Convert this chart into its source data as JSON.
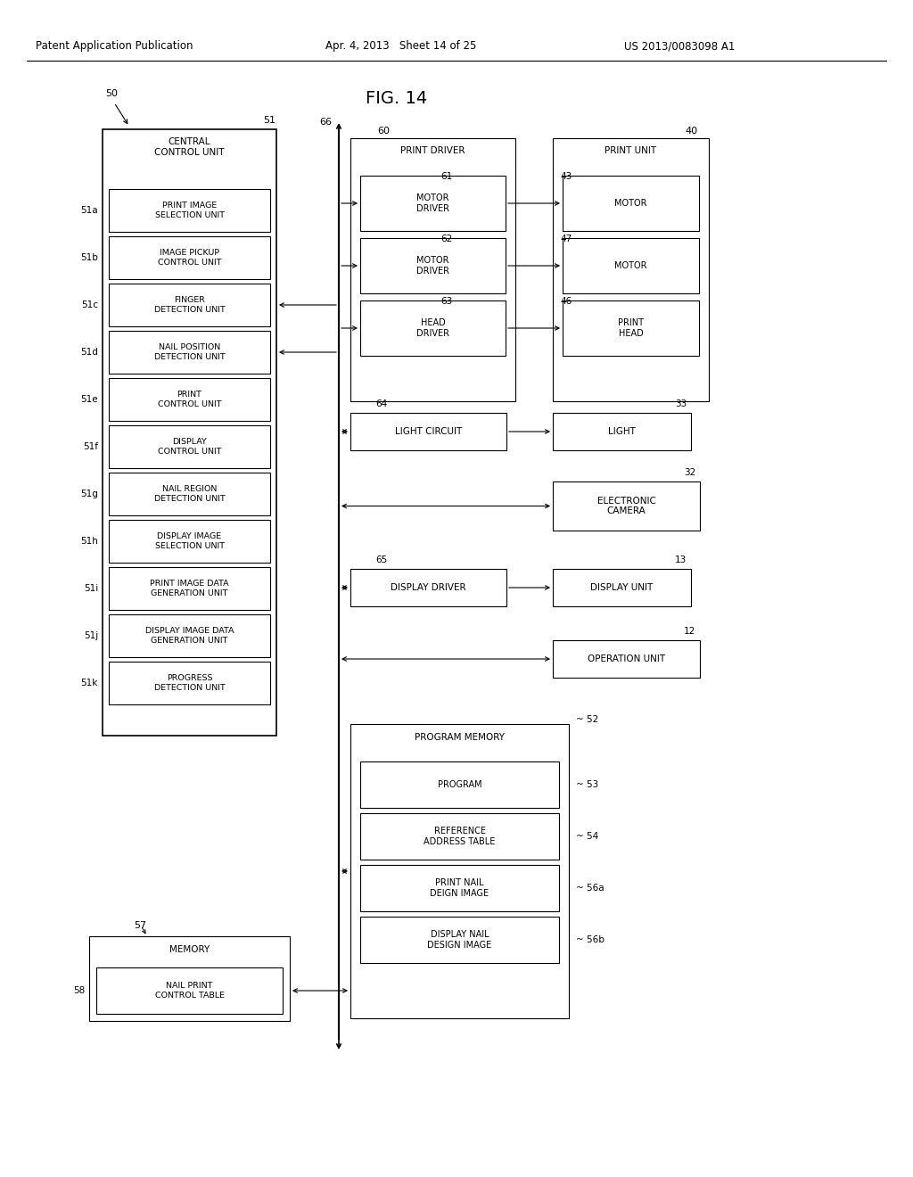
{
  "bg_color": "#ffffff",
  "header_left": "Patent Application Publication",
  "header_mid": "Apr. 4, 2013   Sheet 14 of 25",
  "header_right": "US 2013/0083098 A1",
  "fig_title": "FIG. 14",
  "sub_blocks_51": [
    {
      "label": "51a",
      "text": "PRINT IMAGE\nSELECTION UNIT"
    },
    {
      "label": "51b",
      "text": "IMAGE PICKUP\nCONTROL UNIT"
    },
    {
      "label": "51c",
      "text": "FINGER\nDETECTION UNIT"
    },
    {
      "label": "51d",
      "text": "NAIL POSITION\nDETECTION UNIT"
    },
    {
      "label": "51e",
      "text": "PRINT\nCONTROL UNIT"
    },
    {
      "label": "51f",
      "text": "DISPLAY\nCONTROL UNIT"
    },
    {
      "label": "51g",
      "text": "NAIL REGION\nDETECTION UNIT"
    },
    {
      "label": "51h",
      "text": "DISPLAY IMAGE\nSELECTION UNIT"
    },
    {
      "label": "51i",
      "text": "PRINT IMAGE DATA\nGENERATION UNIT"
    },
    {
      "label": "51j",
      "text": "DISPLAY IMAGE DATA\nGENERATION UNIT"
    },
    {
      "label": "51k",
      "text": "PROGRESS\nDETECTION UNIT"
    }
  ],
  "inner_print_driver": [
    {
      "label": "61",
      "text": "MOTOR\nDRIVER"
    },
    {
      "label": "62",
      "text": "MOTOR\nDRIVER"
    },
    {
      "label": "63",
      "text": "HEAD\nDRIVER"
    }
  ],
  "print_unit_items": [
    {
      "label": "43",
      "text": "MOTOR"
    },
    {
      "label": "47",
      "text": "MOTOR"
    },
    {
      "label": "46",
      "text": "PRINT\nHEAD"
    }
  ],
  "program_memory_items": [
    {
      "label": "53",
      "text": "PROGRAM"
    },
    {
      "label": "54",
      "text": "REFERENCE\nADDRESS TABLE"
    },
    {
      "label": "56a",
      "text": "PRINT NAIL\nDEIGN IMAGE"
    },
    {
      "label": "56b",
      "text": "DISPLAY NAIL\nDESIGN IMAGE"
    }
  ]
}
